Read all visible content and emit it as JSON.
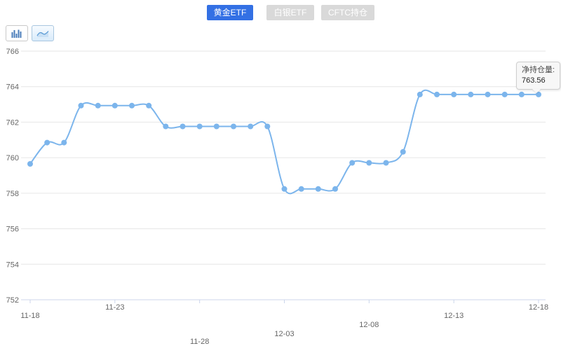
{
  "tabs": [
    {
      "label": "黄金ETF",
      "active": true
    },
    {
      "label": "白银ETF",
      "active": false
    },
    {
      "label": "CFTC持仓",
      "active": false
    }
  ],
  "toolbar_icons": [
    {
      "name": "column-chart-icon",
      "selected": false
    },
    {
      "name": "line-chart-icon",
      "selected": true
    }
  ],
  "tooltip": {
    "label": "净持仓量:",
    "value": "763.56"
  },
  "colors": {
    "active_tab": "#3370e4",
    "inactive_tab": "#d9d9d9",
    "line": "#7cb5ec",
    "grid": "#e6e6e6",
    "axis": "#ccd6eb",
    "tick_label": "#666666",
    "tooltip_bg": "#f7f7f7"
  },
  "chart_data": {
    "type": "line",
    "smooth": true,
    "series_name": "净持仓量",
    "x": [
      "11-18",
      "11-19",
      "11-20",
      "11-21",
      "11-22",
      "11-23",
      "11-24",
      "11-25",
      "11-26",
      "11-27",
      "11-28",
      "11-29",
      "11-30",
      "12-01",
      "12-02",
      "12-03",
      "12-04",
      "12-05",
      "12-06",
      "12-07",
      "12-08",
      "12-09",
      "12-10",
      "12-11",
      "12-12",
      "12-13",
      "12-14",
      "12-15",
      "12-16",
      "12-17",
      "12-18"
    ],
    "values": [
      759.65,
      760.85,
      760.85,
      762.93,
      762.93,
      762.93,
      762.93,
      762.93,
      761.76,
      761.76,
      761.76,
      761.76,
      761.76,
      761.76,
      761.76,
      758.24,
      758.24,
      758.24,
      758.24,
      759.71,
      759.71,
      759.71,
      760.33,
      763.56,
      763.56,
      763.56,
      763.56,
      763.56,
      763.56,
      763.56,
      763.56
    ],
    "ylim": [
      752,
      766
    ],
    "yticks": [
      752,
      754,
      756,
      758,
      760,
      762,
      764,
      766
    ],
    "xticks": [
      "11-18",
      "11-23",
      "11-28",
      "12-03",
      "12-08",
      "12-13",
      "12-18"
    ],
    "xtick_indices": [
      0,
      5,
      10,
      15,
      20,
      25,
      30
    ],
    "grid": "horizontal",
    "legend": "none",
    "marker": "circle",
    "last_point_value": 763.56
  }
}
